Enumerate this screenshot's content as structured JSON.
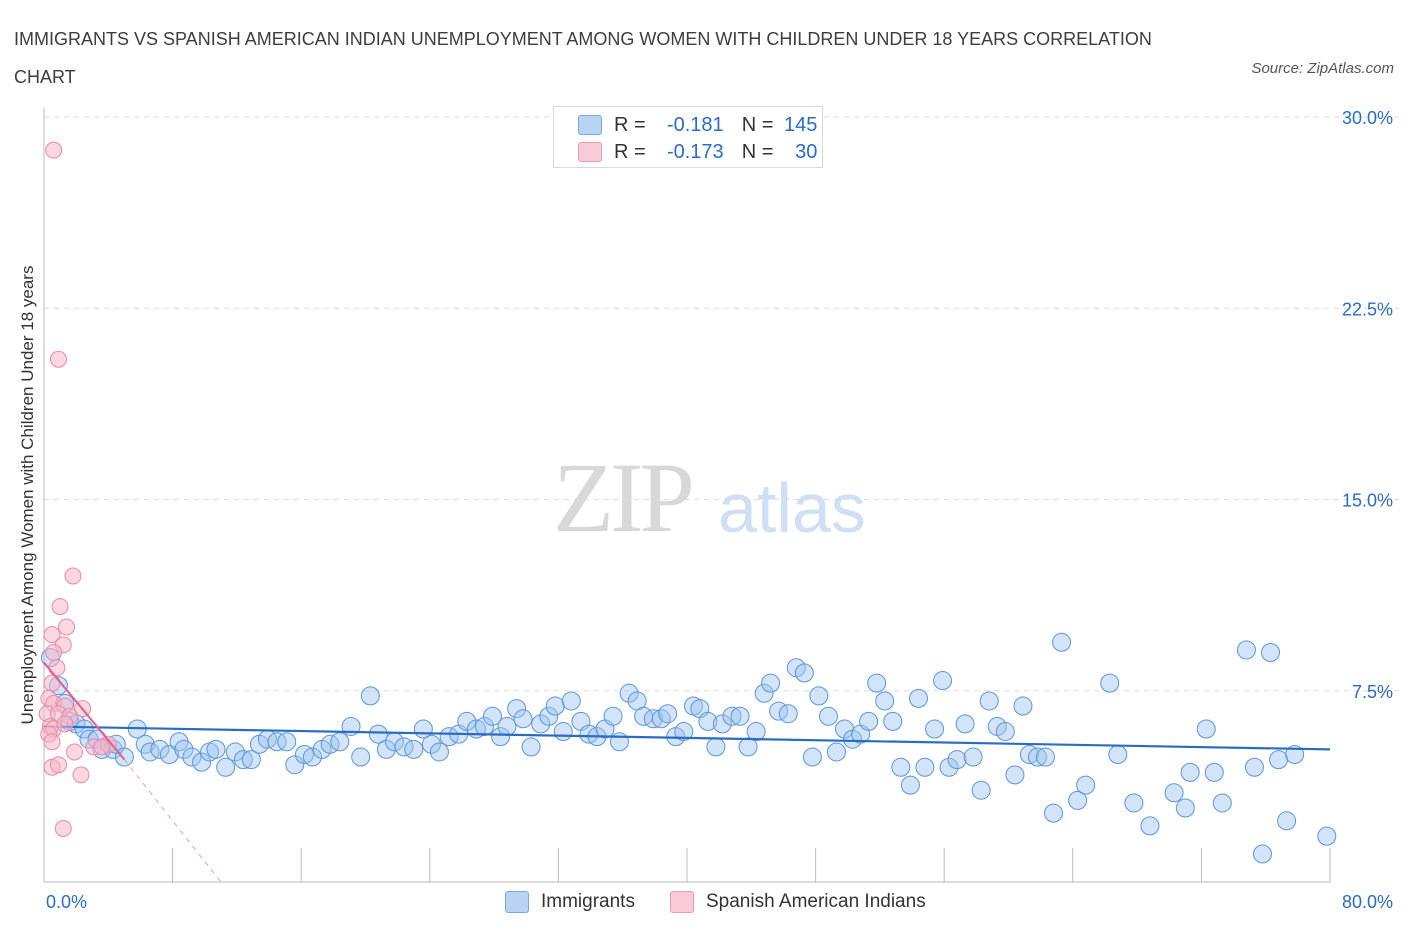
{
  "title": "IMMIGRANTS VS SPANISH AMERICAN INDIAN UNEMPLOYMENT AMONG WOMEN WITH CHILDREN UNDER 18 YEARS CORRELATION CHART",
  "source": "Source: ZipAtlas.com",
  "watermark": {
    "zip": "ZIP",
    "atlas": "atlas"
  },
  "legend": {
    "rows": [
      {
        "r_label": "R =",
        "r_value": "-0.181",
        "n_label": "N =",
        "n_value": "145",
        "color": "#9dc3ef"
      },
      {
        "r_label": "R =",
        "r_value": "-0.173",
        "n_label": "N =",
        "n_value": "30",
        "color": "#f5b6c9"
      }
    ]
  },
  "colors": {
    "blue_fill": "#9dc3ef",
    "blue_stroke": "#5b96d8",
    "blue_line": "#2a6cc4",
    "pink_fill": "#f5b6c9",
    "pink_stroke": "#e88aa8",
    "pink_line": "#e2608a",
    "tick_text": "#2a6cc4"
  },
  "chart_data": {
    "type": "scatter",
    "title": "IMMIGRANTS VS SPANISH AMERICAN INDIAN UNEMPLOYMENT AMONG WOMEN WITH CHILDREN UNDER 18 YEARS CORRELATION CHART",
    "xlabel": "",
    "ylabel": "Unemployment Among Women with Children Under 18 years",
    "xlim": [
      0,
      80
    ],
    "ylim": [
      0,
      30.5
    ],
    "x_tick_labels": [
      {
        "value": 0,
        "label": "0.0%"
      },
      {
        "value": 80,
        "label": "80.0%"
      }
    ],
    "y_tick_labels": [
      {
        "value": 7.5,
        "label": "7.5%"
      },
      {
        "value": 15,
        "label": "15.0%"
      },
      {
        "value": 22.5,
        "label": "22.5%"
      },
      {
        "value": 30,
        "label": "30.0%"
      }
    ],
    "grid": true,
    "series": [
      {
        "name": "Immigrants",
        "r": -0.181,
        "n": 145,
        "trend": {
          "x": [
            0,
            80
          ],
          "y": [
            6.1,
            5.2
          ]
        },
        "points": [
          [
            0.4,
            8.8
          ],
          [
            0.9,
            7.7
          ],
          [
            1.3,
            7.0
          ],
          [
            1.6,
            6.3
          ],
          [
            2.0,
            6.2
          ],
          [
            2.5,
            6.0
          ],
          [
            2.8,
            5.6
          ],
          [
            3.3,
            5.6
          ],
          [
            3.6,
            5.2
          ],
          [
            4.3,
            5.2
          ],
          [
            4.5,
            5.4
          ],
          [
            5.0,
            4.9
          ],
          [
            5.8,
            6.0
          ],
          [
            6.3,
            5.4
          ],
          [
            6.6,
            5.1
          ],
          [
            7.2,
            5.2
          ],
          [
            7.8,
            5.0
          ],
          [
            8.4,
            5.5
          ],
          [
            8.7,
            5.2
          ],
          [
            9.2,
            4.9
          ],
          [
            9.8,
            4.7
          ],
          [
            10.3,
            5.1
          ],
          [
            10.7,
            5.2
          ],
          [
            11.3,
            4.5
          ],
          [
            11.9,
            5.1
          ],
          [
            12.4,
            4.8
          ],
          [
            12.9,
            4.8
          ],
          [
            13.4,
            5.4
          ],
          [
            13.9,
            5.6
          ],
          [
            14.5,
            5.5
          ],
          [
            15.1,
            5.5
          ],
          [
            15.6,
            4.6
          ],
          [
            16.2,
            5.0
          ],
          [
            16.7,
            4.9
          ],
          [
            17.3,
            5.2
          ],
          [
            17.8,
            5.4
          ],
          [
            18.4,
            5.5
          ],
          [
            19.1,
            6.1
          ],
          [
            19.7,
            4.9
          ],
          [
            20.3,
            7.3
          ],
          [
            20.8,
            5.8
          ],
          [
            21.3,
            5.2
          ],
          [
            21.8,
            5.5
          ],
          [
            22.4,
            5.3
          ],
          [
            23.0,
            5.2
          ],
          [
            23.6,
            6.0
          ],
          [
            24.1,
            5.4
          ],
          [
            24.6,
            5.1
          ],
          [
            25.2,
            5.7
          ],
          [
            25.8,
            5.8
          ],
          [
            26.3,
            6.3
          ],
          [
            26.9,
            6.0
          ],
          [
            27.4,
            6.1
          ],
          [
            27.9,
            6.5
          ],
          [
            28.4,
            5.7
          ],
          [
            28.8,
            6.1
          ],
          [
            29.4,
            6.8
          ],
          [
            29.8,
            6.4
          ],
          [
            30.3,
            5.3
          ],
          [
            30.9,
            6.2
          ],
          [
            31.4,
            6.5
          ],
          [
            31.8,
            6.9
          ],
          [
            32.3,
            5.9
          ],
          [
            32.8,
            7.1
          ],
          [
            33.4,
            6.3
          ],
          [
            33.9,
            5.8
          ],
          [
            34.4,
            5.7
          ],
          [
            34.9,
            6.0
          ],
          [
            35.4,
            6.5
          ],
          [
            35.8,
            5.5
          ],
          [
            36.4,
            7.4
          ],
          [
            36.9,
            7.1
          ],
          [
            37.3,
            6.5
          ],
          [
            37.9,
            6.4
          ],
          [
            38.4,
            6.4
          ],
          [
            38.8,
            6.6
          ],
          [
            39.3,
            5.7
          ],
          [
            39.8,
            5.9
          ],
          [
            40.4,
            6.9
          ],
          [
            40.8,
            6.8
          ],
          [
            41.3,
            6.3
          ],
          [
            41.8,
            5.3
          ],
          [
            42.2,
            6.2
          ],
          [
            42.8,
            6.5
          ],
          [
            43.3,
            6.5
          ],
          [
            43.8,
            5.3
          ],
          [
            44.3,
            5.9
          ],
          [
            44.8,
            7.4
          ],
          [
            45.2,
            7.8
          ],
          [
            45.7,
            6.7
          ],
          [
            46.3,
            6.6
          ],
          [
            46.8,
            8.4
          ],
          [
            47.3,
            8.2
          ],
          [
            47.8,
            4.9
          ],
          [
            48.2,
            7.3
          ],
          [
            48.8,
            6.5
          ],
          [
            49.3,
            5.1
          ],
          [
            49.8,
            6.0
          ],
          [
            50.3,
            5.6
          ],
          [
            50.8,
            5.8
          ],
          [
            51.3,
            6.3
          ],
          [
            51.8,
            7.8
          ],
          [
            52.3,
            7.1
          ],
          [
            52.8,
            6.3
          ],
          [
            53.3,
            4.5
          ],
          [
            53.9,
            3.8
          ],
          [
            54.4,
            7.2
          ],
          [
            54.8,
            4.5
          ],
          [
            55.4,
            6.0
          ],
          [
            55.9,
            7.9
          ],
          [
            56.3,
            4.5
          ],
          [
            56.8,
            4.8
          ],
          [
            57.3,
            6.2
          ],
          [
            57.8,
            4.9
          ],
          [
            58.3,
            3.6
          ],
          [
            58.8,
            7.1
          ],
          [
            59.3,
            6.1
          ],
          [
            59.8,
            5.9
          ],
          [
            60.4,
            4.2
          ],
          [
            60.9,
            6.9
          ],
          [
            61.3,
            5.0
          ],
          [
            61.8,
            4.9
          ],
          [
            62.3,
            4.9
          ],
          [
            62.8,
            2.7
          ],
          [
            63.3,
            9.4
          ],
          [
            64.3,
            3.2
          ],
          [
            64.8,
            3.8
          ],
          [
            66.3,
            7.8
          ],
          [
            66.8,
            5.0
          ],
          [
            67.8,
            3.1
          ],
          [
            68.8,
            2.2
          ],
          [
            70.3,
            3.5
          ],
          [
            71.0,
            2.9
          ],
          [
            71.3,
            4.3
          ],
          [
            72.3,
            6.0
          ],
          [
            72.8,
            4.3
          ],
          [
            73.3,
            3.1
          ],
          [
            74.8,
            9.1
          ],
          [
            75.3,
            4.5
          ],
          [
            75.8,
            1.1
          ],
          [
            76.3,
            9.0
          ],
          [
            76.8,
            4.8
          ],
          [
            77.3,
            2.4
          ],
          [
            77.8,
            5.0
          ],
          [
            79.8,
            1.8
          ]
        ]
      },
      {
        "name": "Spanish American Indians",
        "r": -0.173,
        "n": 30,
        "trend": {
          "x": [
            0,
            5
          ],
          "y": [
            8.6,
            4.8
          ]
        },
        "trend_extension": {
          "x": [
            5,
            11
          ],
          "y": [
            4.8,
            0
          ]
        },
        "points": [
          [
            0.6,
            28.7
          ],
          [
            0.9,
            20.5
          ],
          [
            1.8,
            12.0
          ],
          [
            1.0,
            10.8
          ],
          [
            1.4,
            10.0
          ],
          [
            0.5,
            9.7
          ],
          [
            1.2,
            9.3
          ],
          [
            0.6,
            9.0
          ],
          [
            0.8,
            8.4
          ],
          [
            0.5,
            7.8
          ],
          [
            0.3,
            7.2
          ],
          [
            0.6,
            7.0
          ],
          [
            1.3,
            6.9
          ],
          [
            2.4,
            6.8
          ],
          [
            0.2,
            6.6
          ],
          [
            0.9,
            6.6
          ],
          [
            1.6,
            6.5
          ],
          [
            0.4,
            6.1
          ],
          [
            0.6,
            6.0
          ],
          [
            1.3,
            6.2
          ],
          [
            0.3,
            5.8
          ],
          [
            0.5,
            5.5
          ],
          [
            3.1,
            5.3
          ],
          [
            4.0,
            5.4
          ],
          [
            1.9,
            5.1
          ],
          [
            3.6,
            5.3
          ],
          [
            0.5,
            4.5
          ],
          [
            0.9,
            4.6
          ],
          [
            2.3,
            4.2
          ],
          [
            1.2,
            2.1
          ]
        ]
      }
    ]
  }
}
